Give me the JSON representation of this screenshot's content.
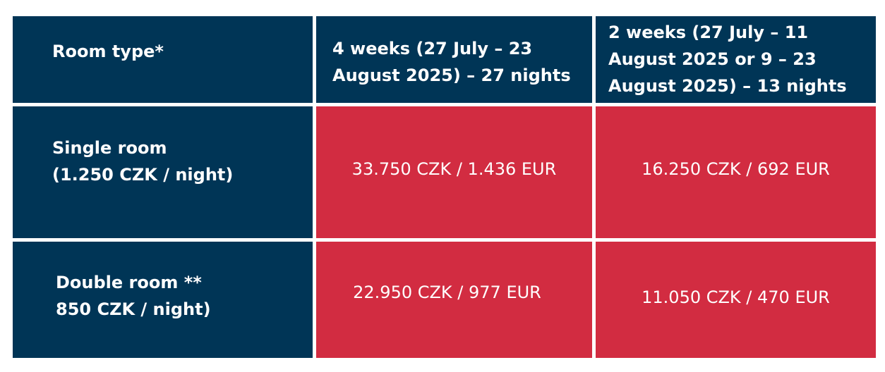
{
  "table": {
    "headers": [
      "Room type*",
      "4 weeks (27 July – 23\nAugust 2025) – 27 nights",
      "2 weeks (27 July – 11\nAugust 2025 or 9 – 23\nAugust 2025) – 13 nights"
    ],
    "rows": [
      {
        "room": "Single room\n(1.250 CZK / night)",
        "four_weeks": "33.750 CZK / 1.436 EUR",
        "two_weeks": "16.250 CZK / 692 EUR"
      },
      {
        "room": "Double room **\n850 CZK / night)",
        "four_weeks": "22.950 CZK / 977 EUR",
        "two_weeks": "11.050 CZK / 470 EUR"
      }
    ]
  },
  "colors": {
    "header_bg": "#003556",
    "price_bg": "#d22c41",
    "text": "#ffffff"
  }
}
